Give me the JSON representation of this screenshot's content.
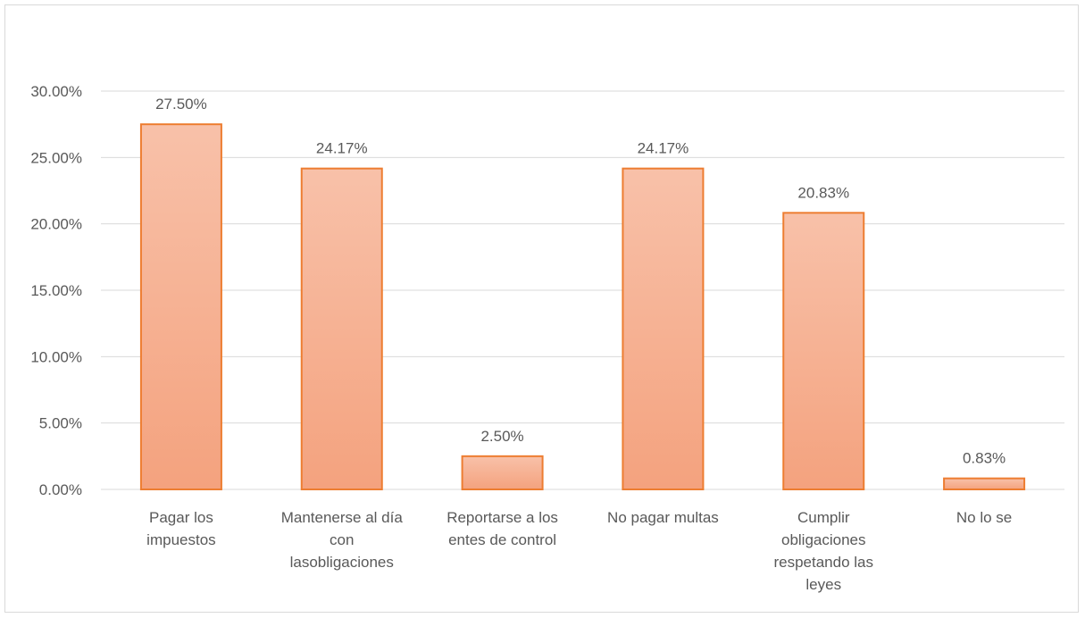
{
  "chart_data": {
    "type": "bar",
    "title": "",
    "xlabel": "",
    "ylabel": "",
    "ylim": [
      0,
      30
    ],
    "ytick_step": 5,
    "ytick_labels": [
      "0.00%",
      "5.00%",
      "10.00%",
      "15.00%",
      "20.00%",
      "25.00%",
      "30.00%"
    ],
    "grid": true,
    "legend": "none",
    "categories": [
      [
        "Pagar los",
        "impuestos"
      ],
      [
        "Mantenerse al día",
        "con",
        "lasobligaciones"
      ],
      [
        "Reportarse a los",
        "entes de control"
      ],
      [
        "No pagar multas"
      ],
      [
        "Cumplir",
        "obligaciones",
        "respetando las",
        "leyes"
      ],
      [
        "No lo se"
      ]
    ],
    "values": [
      27.5,
      24.17,
      2.5,
      24.17,
      20.83,
      0.83
    ],
    "value_labels": [
      "27.50%",
      "24.17%",
      "2.50%",
      "24.17%",
      "20.83%",
      "0.83%"
    ],
    "colors": {
      "bar_fill_top": "#f8c1a9",
      "bar_fill_bottom": "#f4a27e",
      "bar_stroke": "#ed7d31",
      "gridline": "#d9d9d9",
      "text": "#595959"
    }
  }
}
